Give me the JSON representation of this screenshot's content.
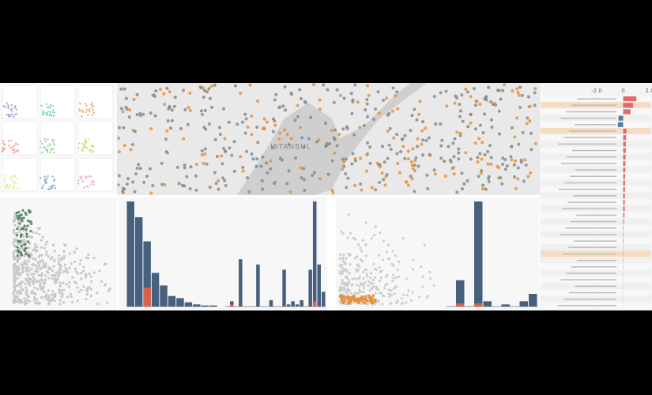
{
  "map": {
    "label": "ISTANBUL"
  },
  "variables": {
    "xlim": [
      -2.0,
      2.0
    ],
    "xticks": [
      {
        "value": -2.0,
        "label": "-2.0"
      },
      0,
      {
        "value": 2.0,
        "label": "2.0"
      }
    ],
    "highlighted": [
      1,
      5,
      24
    ],
    "values": [
      1.0,
      0.75,
      0.55,
      -0.35,
      -0.4,
      0.25,
      0.22,
      0.2,
      0.2,
      0.18,
      0.17,
      0.16,
      0.15,
      0.14,
      0.14,
      0.13,
      0.12,
      0.12,
      0.1,
      0.06,
      0.04,
      0.03,
      -0.03,
      0.02,
      -0.02,
      0.02,
      0.02,
      0.01,
      0.01,
      0.01,
      0.01,
      0.01,
      0.01
    ]
  },
  "histograms": [
    {
      "ylim": [
        0,
        100
      ],
      "values": [
        100,
        85,
        62,
        32,
        20,
        10,
        8,
        4,
        2,
        1,
        1
      ],
      "highlight": [
        0,
        0,
        18,
        0,
        0,
        0,
        0,
        0,
        0,
        0,
        0
      ]
    },
    {
      "ylim": [
        0,
        100
      ],
      "values": [
        0,
        5,
        0,
        45,
        0,
        0,
        0,
        40,
        0,
        0,
        6,
        0,
        0,
        35,
        2,
        5,
        2,
        6,
        0,
        35,
        100,
        40,
        14
      ],
      "highlight": [
        0,
        2,
        0,
        0,
        0,
        0,
        0,
        0,
        0,
        0,
        0,
        0,
        0,
        0,
        0,
        0,
        0,
        0,
        0,
        0,
        5,
        0,
        0
      ]
    },
    {
      "ylim": [
        0,
        100
      ],
      "values": [
        0,
        25,
        0,
        100,
        5,
        0,
        2,
        0,
        5,
        12
      ],
      "highlight": [
        0,
        3,
        0,
        3,
        0,
        0,
        0,
        0,
        0,
        0
      ]
    }
  ]
}
